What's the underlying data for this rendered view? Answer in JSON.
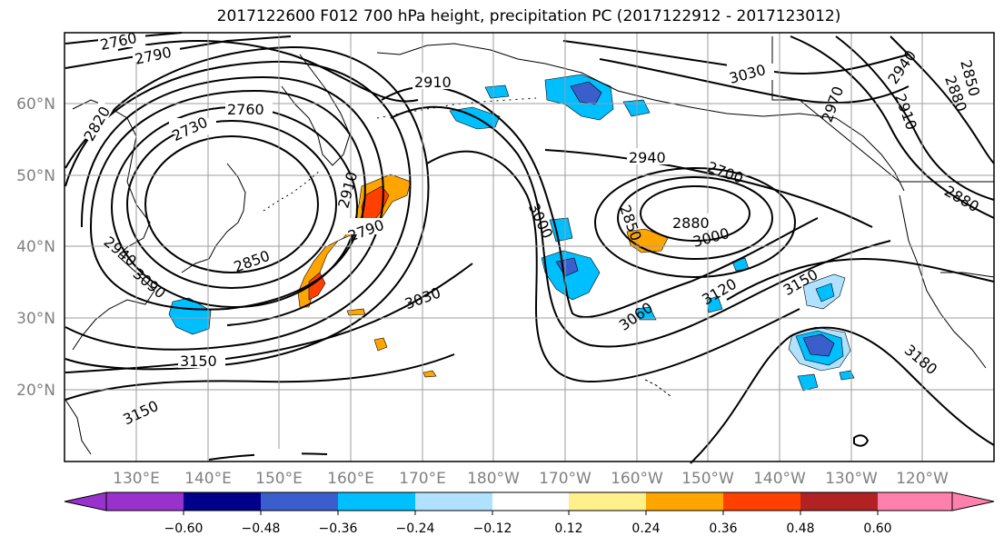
{
  "title": "2017122600 F012 700 hPa height, precipitation PC (2017122912 - 2017123012)",
  "lat_labels": [
    "60°N",
    "50°N",
    "40°N",
    "30°N",
    "20°N"
  ],
  "lon_labels": [
    "130°E",
    "140°E",
    "150°E",
    "160°E",
    "170°E",
    "180°W",
    "170°W",
    "160°W",
    "150°W",
    "140°W",
    "130°W",
    "120°W"
  ],
  "contour_labels": [
    "2760",
    "2790",
    "2820",
    "2730",
    "2760",
    "2910",
    "3030",
    "2940",
    "2850",
    "2910",
    "2880",
    "2970",
    "2940",
    "2700",
    "2910",
    "2850",
    "2880",
    "3000",
    "3000",
    "2880",
    "2790",
    "2850",
    "2940",
    "3090",
    "3030",
    "3060",
    "3120",
    "3150",
    "3180",
    "3150",
    "3150"
  ],
  "colorbar": {
    "colors": [
      "#9932cc",
      "#00008b",
      "#3a5fcd",
      "#00bfff",
      "#b0e2ff",
      "#ffffff",
      "#fff08c",
      "#ffa500",
      "#ff4000",
      "#b22222",
      "#ff80ac"
    ],
    "tick_labels": [
      "−0.60",
      "−0.48",
      "−0.36",
      "−0.24",
      "−0.12",
      "0.12",
      "0.24",
      "0.36",
      "0.48",
      "0.60"
    ]
  },
  "colors": {
    "contour": "#000000",
    "grid": "#9e9e9e",
    "lat_lon_label": "#808080"
  }
}
